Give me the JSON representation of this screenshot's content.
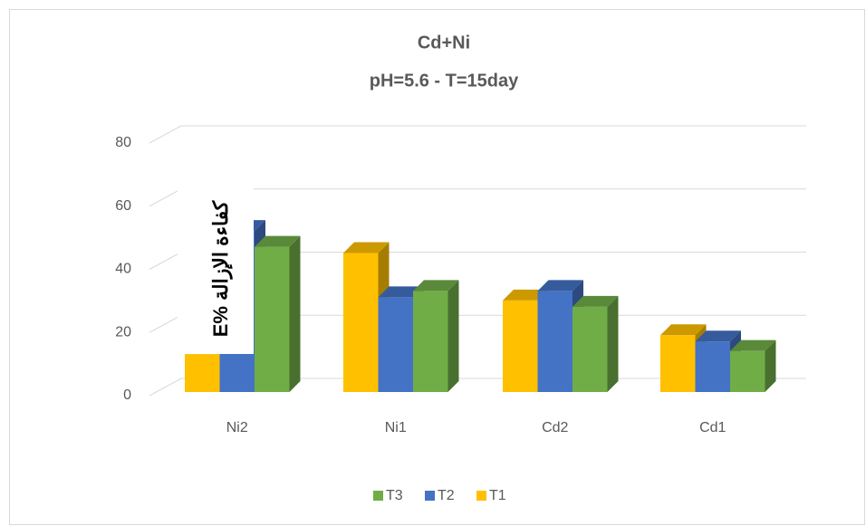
{
  "chart_data": {
    "type": "bar3d",
    "title": "Cd+Ni",
    "subtitle": "pH=5.6  - T=15day",
    "y_label": "E% كفاءة الإزالة",
    "categories": [
      "Ni2",
      "Ni1",
      "Cd2",
      "Cd1"
    ],
    "series": [
      {
        "name": "T1",
        "color": "#ffc000",
        "values": [
          12,
          44,
          29,
          18
        ]
      },
      {
        "name": "T2",
        "color": "#4472c4",
        "values": [
          51,
          30,
          32,
          16
        ]
      },
      {
        "name": "T3",
        "color": "#70ad47",
        "values": [
          46,
          32,
          27,
          13
        ]
      }
    ],
    "ylim": [
      0,
      80
    ],
    "yticks": [
      0,
      20,
      40,
      60,
      80
    ],
    "grid": true,
    "legend": "bottom"
  }
}
